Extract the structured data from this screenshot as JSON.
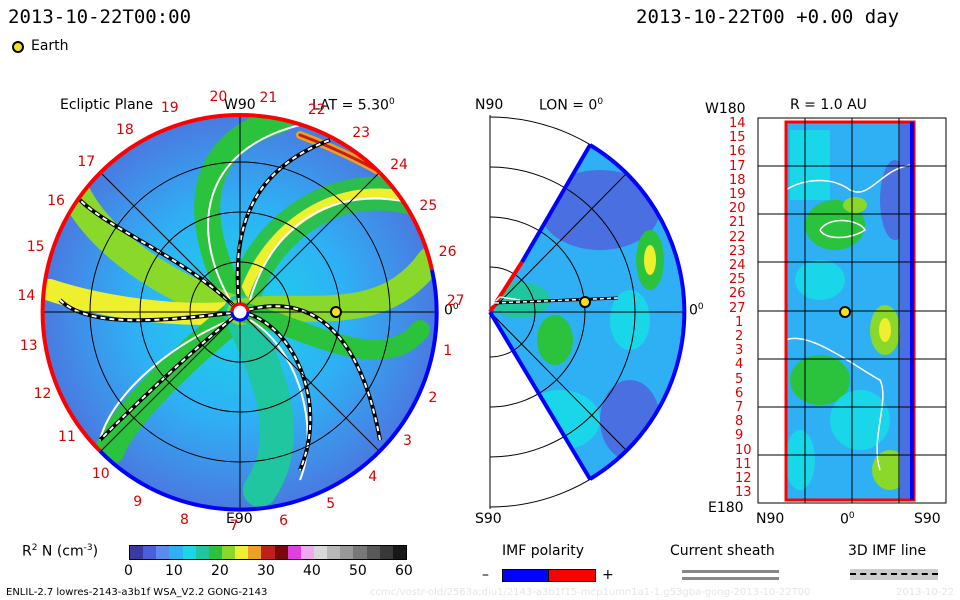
{
  "header": {
    "left_time": "2013-10-22T00:00",
    "right_time": "2013-10-22T00 +0.00 day",
    "earth_label": "Earth"
  },
  "ecliptic": {
    "title": "Ecliptic Plane",
    "lat_label": "LAT = 5.30",
    "lat_sup": "0",
    "top_label": "W90",
    "bottom_label": "E90",
    "right_label": "0",
    "right_sup": "0",
    "sector_numbers": [
      "20",
      "21",
      "22",
      "23",
      "24",
      "25",
      "26",
      "27",
      "1",
      "2",
      "3",
      "4",
      "5",
      "6",
      "7",
      "8",
      "9",
      "10",
      "11",
      "12",
      "13",
      "14",
      "15",
      "16",
      "17",
      "18",
      "19"
    ]
  },
  "meridional": {
    "top_label": "N90",
    "lon_label": "LON = 0",
    "lon_sup": "0",
    "bottom_label": "S90",
    "right_label": "0",
    "right_sup": "0"
  },
  "radial": {
    "title": "R = 1.0 AU",
    "top_left": "W180",
    "bottom_left": "E180",
    "bottom_ticks": [
      "N90",
      "0",
      "S90"
    ],
    "bottom_mid_sup": "0",
    "row_labels": [
      "14",
      "15",
      "16",
      "17",
      "18",
      "19",
      "20",
      "21",
      "22",
      "23",
      "24",
      "25",
      "26",
      "27",
      "1",
      "2",
      "3",
      "4",
      "5",
      "6",
      "7",
      "8",
      "9",
      "10",
      "11",
      "12",
      "13"
    ]
  },
  "colorbar": {
    "label": "R",
    "label_sup": "2",
    "label_rest": " N (cm",
    "label_exp": "-3",
    "label_close": ")",
    "ticks": [
      "0",
      "10",
      "20",
      "30",
      "40",
      "50",
      "60"
    ],
    "colors": [
      "#3a3aa0",
      "#4a5fd8",
      "#5a8cf0",
      "#2fb0f5",
      "#19d6e8",
      "#1fc6a0",
      "#2bc23d",
      "#8ad82a",
      "#eef02d",
      "#f0a020",
      "#c0201c",
      "#7a0a0a",
      "#e040e0",
      "#f0a8f0",
      "#d8d8d8",
      "#b8b8b8",
      "#989898",
      "#787878",
      "#585858",
      "#383838",
      "#181818"
    ]
  },
  "legends": {
    "imf_title": "IMF polarity",
    "imf_minus": "–",
    "imf_plus": "+",
    "imf_neg_color": "#0000ff",
    "imf_pos_color": "#ff0000",
    "sheath_title": "Current sheath",
    "imf3d_title": "3D IMF line"
  },
  "footer": {
    "model": "ENLIL-2.7 lowres-2143-a3b1f WSA_V2.2 GONG-2143",
    "watermark": "ccmc/vostr-old/2563a;diu1/2143-a3b1f15-mcp1umn1a1-1.g53gba-gong-2013-10-22T00",
    "date_right": "2013-10-22"
  }
}
